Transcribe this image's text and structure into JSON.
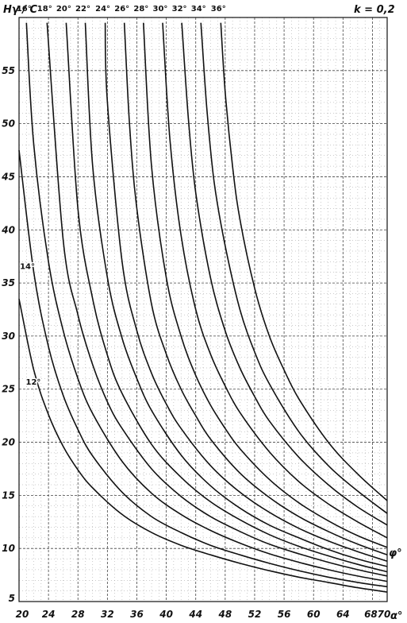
{
  "chart_data": {
    "type": "line",
    "title": "",
    "ylabel": "Hγ / C",
    "xlabel": "α°",
    "parameter_label": "φ°",
    "annotation": "k = 0,2",
    "xlim": [
      20,
      70
    ],
    "ylim": [
      5,
      60
    ],
    "xticks": [
      "20",
      "24",
      "28",
      "32",
      "36",
      "40",
      "44",
      "48",
      "52",
      "56",
      "60",
      "64",
      "68",
      "70"
    ],
    "yticks": [
      "10",
      "15",
      "20",
      "25",
      "30",
      "35",
      "40",
      "45",
      "50",
      "55"
    ],
    "grid": true,
    "series": [
      {
        "name": "12°",
        "x": [
          20,
          22,
          24,
          26,
          28,
          30,
          34,
          38,
          42,
          46,
          50,
          54,
          58,
          62,
          66,
          70
        ],
        "y": [
          33.5,
          26.8,
          22.6,
          19.6,
          17.4,
          15.7,
          13.2,
          11.5,
          10.3,
          9.4,
          8.6,
          7.9,
          7.3,
          6.8,
          6.3,
          5.9
        ]
      },
      {
        "name": "14°",
        "x": [
          20,
          22,
          24,
          26,
          28,
          30,
          34,
          38,
          42,
          46,
          50,
          54,
          58,
          62,
          66,
          70
        ],
        "y": [
          47.5,
          36.0,
          29.0,
          24.4,
          21.2,
          18.7,
          15.3,
          13.0,
          11.5,
          10.3,
          9.4,
          8.6,
          7.9,
          7.3,
          6.8,
          6.4
        ]
      },
      {
        "name": "16°",
        "x": [
          21,
          22,
          24,
          26,
          28,
          30,
          34,
          38,
          42,
          46,
          50,
          54,
          58,
          62,
          66,
          70
        ],
        "y": [
          59.5,
          48.0,
          37.0,
          30.5,
          26.0,
          22.7,
          18.2,
          15.2,
          13.2,
          11.7,
          10.5,
          9.5,
          8.7,
          8.0,
          7.4,
          6.9
        ]
      },
      {
        "name": "18°",
        "x": [
          23.8,
          26,
          28,
          30,
          32,
          34,
          38,
          42,
          46,
          50,
          54,
          58,
          62,
          66,
          70
        ],
        "y": [
          59.5,
          39.0,
          32.0,
          27.3,
          23.8,
          21.3,
          17.5,
          14.9,
          13.0,
          11.6,
          10.4,
          9.5,
          8.7,
          8.0,
          7.4
        ]
      },
      {
        "name": "20°",
        "x": [
          26.4,
          28,
          30,
          32,
          34,
          38,
          42,
          46,
          50,
          54,
          58,
          62,
          66,
          70
        ],
        "y": [
          59.5,
          42.0,
          33.5,
          28.2,
          24.6,
          19.8,
          16.7,
          14.4,
          12.7,
          11.3,
          10.2,
          9.3,
          8.5,
          7.8
        ]
      },
      {
        "name": "22°",
        "x": [
          29.0,
          30,
          32,
          34,
          36,
          38,
          42,
          46,
          50,
          54,
          58,
          62,
          66,
          70
        ],
        "y": [
          59.5,
          46.0,
          35.5,
          29.8,
          26.0,
          23.0,
          18.8,
          15.9,
          13.8,
          12.2,
          11.0,
          9.9,
          9.0,
          8.3
        ]
      },
      {
        "name": "24°",
        "x": [
          31.7,
          32,
          34,
          36,
          38,
          40,
          42,
          46,
          50,
          54,
          58,
          62,
          66,
          70
        ],
        "y": [
          59.5,
          52.0,
          37.0,
          30.5,
          26.5,
          23.6,
          21.3,
          17.8,
          15.3,
          13.4,
          11.9,
          10.7,
          9.7,
          8.8
        ]
      },
      {
        "name": "26°",
        "x": [
          34.3,
          35,
          36,
          38,
          40,
          42,
          44,
          46,
          50,
          54,
          58,
          62,
          66,
          70
        ],
        "y": [
          59.5,
          50.0,
          42.0,
          33.0,
          28.3,
          25.0,
          22.5,
          20.3,
          17.1,
          14.8,
          13.0,
          11.6,
          10.4,
          9.4
        ]
      },
      {
        "name": "28°",
        "x": [
          36.9,
          38,
          40,
          42,
          44,
          46,
          48,
          50,
          54,
          58,
          62,
          66,
          70
        ],
        "y": [
          59.5,
          46.0,
          35.5,
          30.0,
          26.3,
          23.5,
          21.3,
          19.4,
          16.5,
          14.3,
          12.6,
          11.2,
          10.1
        ]
      },
      {
        "name": "30°",
        "x": [
          39.5,
          40.5,
          42,
          44,
          46,
          48,
          50,
          54,
          58,
          62,
          66,
          70
        ],
        "y": [
          59.5,
          48.5,
          39.5,
          32.5,
          28.3,
          25.3,
          22.8,
          19.1,
          16.3,
          14.2,
          12.5,
          11.0
        ]
      },
      {
        "name": "32°",
        "x": [
          42.1,
          43,
          44,
          46,
          48,
          50,
          52,
          54,
          58,
          62,
          66,
          70
        ],
        "y": [
          59.5,
          50.5,
          43.5,
          35.5,
          30.5,
          27.0,
          24.3,
          22.0,
          18.6,
          16.0,
          13.9,
          12.2
        ]
      },
      {
        "name": "34°",
        "x": [
          44.7,
          45.5,
          46.5,
          48,
          50,
          52,
          54,
          58,
          62,
          66,
          70
        ],
        "y": [
          59.5,
          51.5,
          44.5,
          38.5,
          32.5,
          28.5,
          25.5,
          21.0,
          17.8,
          15.4,
          13.3
        ]
      },
      {
        "name": "36°",
        "x": [
          47.4,
          48,
          49,
          50,
          52,
          54,
          56,
          58,
          62,
          66,
          70
        ],
        "y": [
          59.5,
          53.0,
          46.0,
          41.0,
          34.5,
          30.0,
          26.8,
          24.1,
          20.0,
          17.0,
          14.5
        ]
      }
    ]
  }
}
